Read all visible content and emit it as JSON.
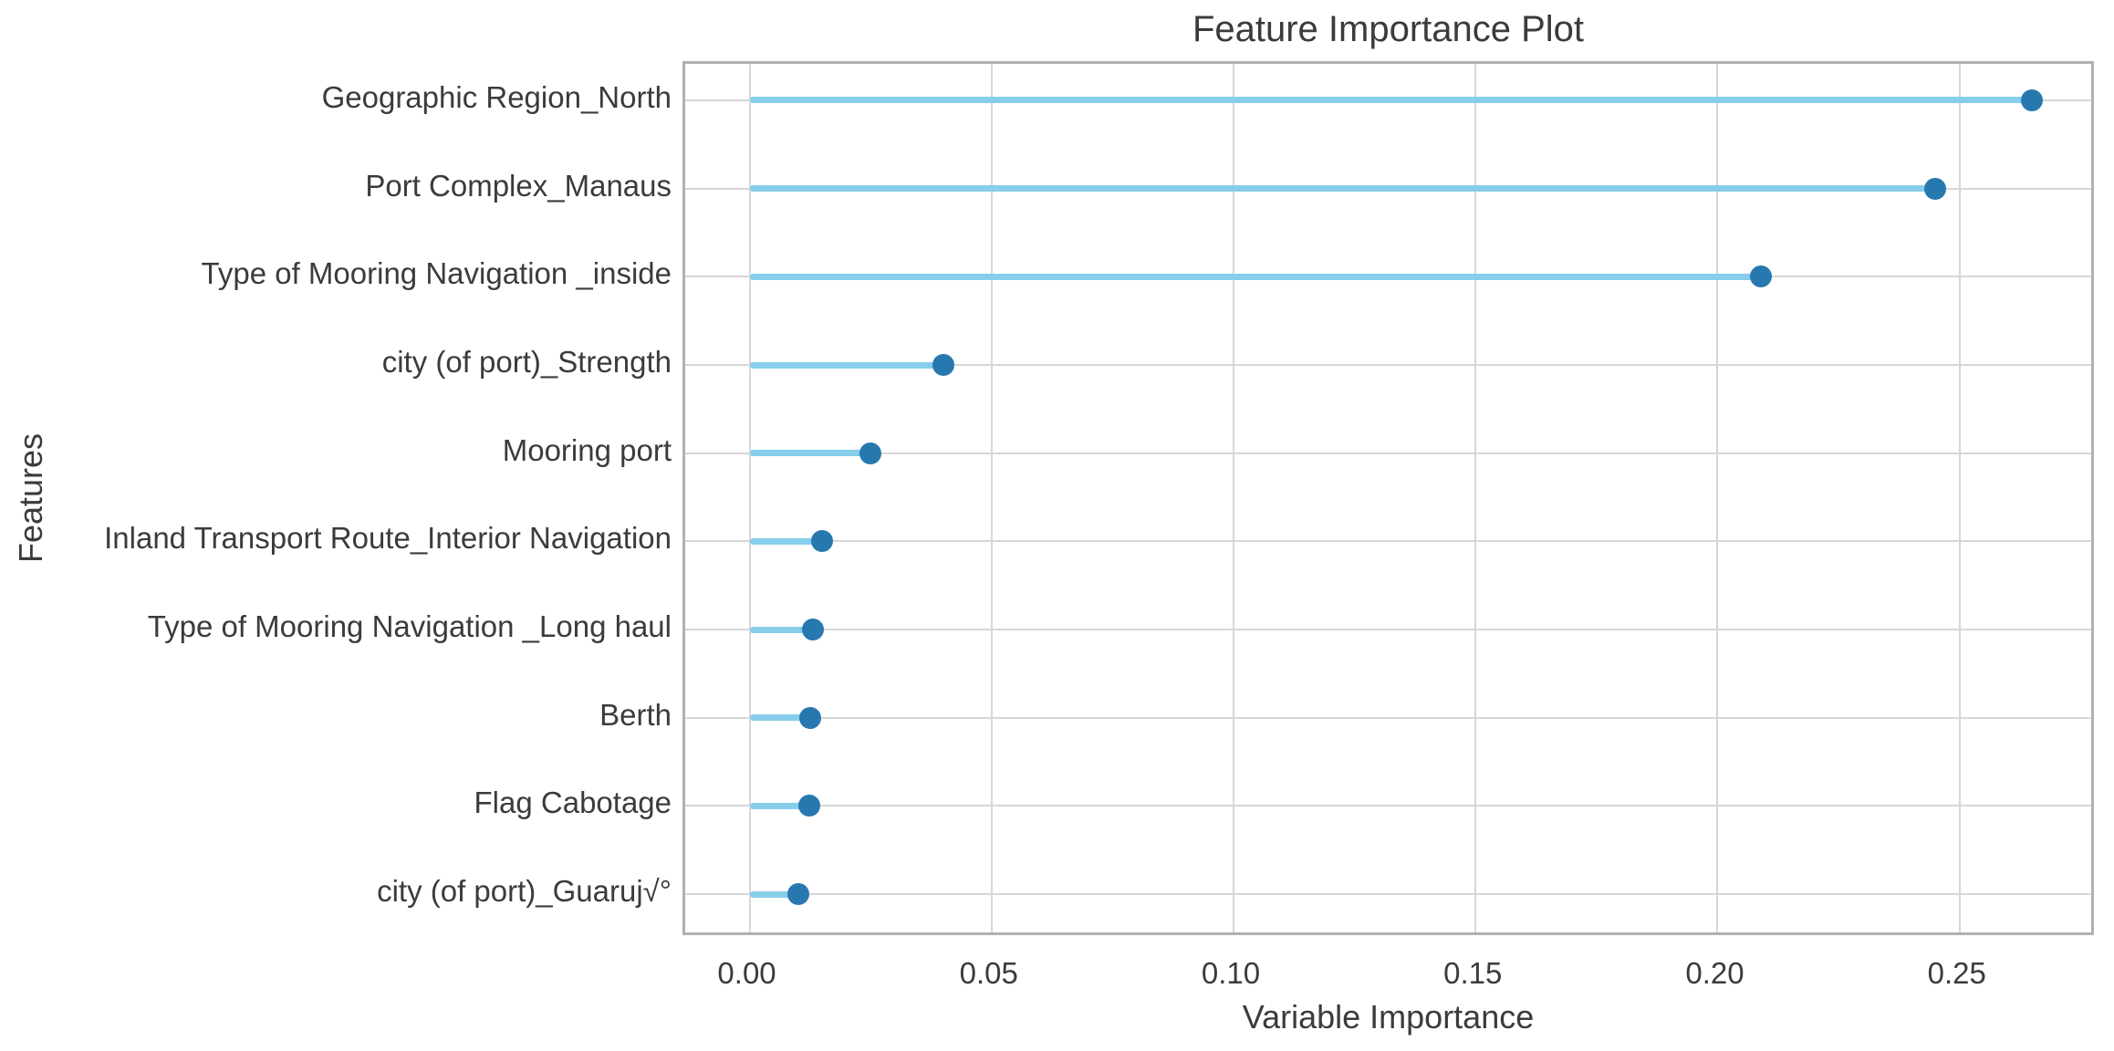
{
  "chart_data": {
    "type": "lollipop",
    "title": "Feature Importance Plot",
    "xlabel": "Variable Importance",
    "ylabel": "Features",
    "categories": [
      "Geographic Region_North",
      "Port Complex_Manaus",
      "Type of Mooring Navigation _inside",
      "city (of port)_Strength",
      "Mooring port",
      "Inland Transport Route_Interior Navigation",
      "Type of Mooring Navigation _Long haul",
      "Berth",
      "Flag Cabotage",
      "city (of port)_Guaruj√°"
    ],
    "values": [
      0.265,
      0.245,
      0.209,
      0.04,
      0.025,
      0.015,
      0.013,
      0.0125,
      0.0123,
      0.01
    ],
    "x_ticks": [
      0.0,
      0.05,
      0.1,
      0.15,
      0.2,
      0.25
    ],
    "x_tick_labels": [
      "0.00",
      "0.05",
      "0.10",
      "0.15",
      "0.20",
      "0.25"
    ],
    "xlim": [
      -0.0133,
      0.2772
    ],
    "stem_start": 0.0,
    "grid": true,
    "legend": "none",
    "colors": {
      "stem": "#87CEEB",
      "dot": "#2878B0",
      "grid": "#D7D7D7",
      "spine": "#B0B0B0",
      "text": "#3B3B3B",
      "background": "#FFFFFF"
    }
  }
}
